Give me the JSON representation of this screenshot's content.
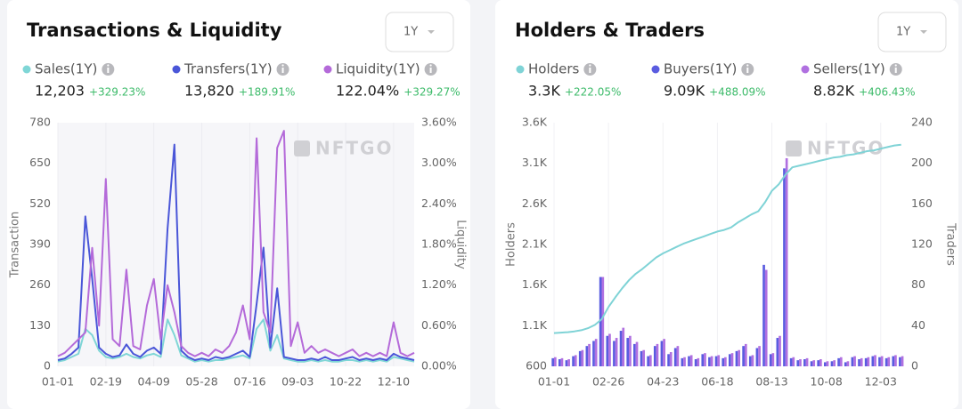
{
  "chart_data": [
    {
      "type": "line",
      "title": "Transactions & Liquidity",
      "period": "1Y",
      "watermark": "NFTGO",
      "ylabel": "Transaction",
      "y2label": "Liquidity",
      "x": [
        0,
        7,
        14,
        21,
        28,
        35,
        42,
        49,
        56,
        63,
        70,
        77,
        84,
        91,
        98,
        105,
        112,
        119,
        126,
        133,
        140,
        147,
        154,
        161,
        168,
        175,
        182,
        189,
        196,
        203,
        210,
        217,
        224,
        231,
        238,
        245,
        252,
        259,
        266,
        273,
        280,
        287,
        294,
        301,
        308,
        315,
        322,
        329,
        336,
        343,
        350,
        357,
        364
      ],
      "xlim": [
        0,
        364
      ],
      "xticks": [
        {
          "value": 0,
          "label": "01-01"
        },
        {
          "value": 49,
          "label": "02-19"
        },
        {
          "value": 98,
          "label": "04-09"
        },
        {
          "value": 147,
          "label": "05-28"
        },
        {
          "value": 196,
          "label": "07-16"
        },
        {
          "value": 245,
          "label": "09-03"
        },
        {
          "value": 294,
          "label": "10-22"
        },
        {
          "value": 343,
          "label": "12-10"
        }
      ],
      "ylim": [
        0,
        780
      ],
      "yticks": [
        0,
        130,
        260,
        390,
        520,
        650,
        780
      ],
      "y2lim": [
        0,
        3.6
      ],
      "y2ticks": [
        {
          "value": 0,
          "label": "0.00%"
        },
        {
          "value": 0.6,
          "label": "0.60%"
        },
        {
          "value": 1.2,
          "label": "1.20%"
        },
        {
          "value": 1.8,
          "label": "1.80%"
        },
        {
          "value": 2.4,
          "label": "2.40%"
        },
        {
          "value": 3.0,
          "label": "3.00%"
        },
        {
          "value": 3.6,
          "label": "3.60%"
        }
      ],
      "grid": true,
      "series": [
        {
          "name": "Sales(1Y)",
          "stat": "12,203",
          "change": "+329.23%",
          "color": "#7fd6d6",
          "values": [
            15,
            20,
            30,
            40,
            120,
            100,
            50,
            30,
            25,
            30,
            40,
            30,
            25,
            35,
            40,
            30,
            150,
            100,
            35,
            25,
            15,
            20,
            15,
            20,
            20,
            25,
            30,
            35,
            25,
            120,
            150,
            50,
            100,
            25,
            20,
            15,
            15,
            20,
            15,
            20,
            15,
            15,
            20,
            20,
            15,
            20,
            15,
            20,
            15,
            30,
            25,
            20,
            15
          ]
        },
        {
          "name": "Transfers(1Y)",
          "stat": "13,820",
          "change": "+189.91%",
          "color": "#4a56d8",
          "values": [
            20,
            25,
            40,
            60,
            480,
            280,
            60,
            40,
            30,
            35,
            70,
            40,
            30,
            50,
            60,
            40,
            440,
            710,
            50,
            30,
            20,
            25,
            20,
            30,
            25,
            30,
            40,
            50,
            30,
            200,
            380,
            60,
            250,
            30,
            25,
            20,
            20,
            25,
            20,
            30,
            20,
            20,
            25,
            30,
            20,
            25,
            20,
            25,
            20,
            40,
            30,
            25,
            20
          ]
        },
        {
          "name": "Liquidity(1Y)",
          "stat": "122.04%",
          "change": "+329.27%",
          "color": "#b46ad9",
          "axis": "y2",
          "values": [
            0.15,
            0.2,
            0.3,
            0.4,
            0.5,
            1.75,
            0.6,
            2.77,
            0.4,
            0.3,
            1.43,
            0.3,
            0.25,
            0.9,
            1.29,
            0.4,
            1.2,
            0.8,
            0.3,
            0.2,
            0.15,
            0.2,
            0.15,
            0.25,
            0.2,
            0.3,
            0.5,
            0.9,
            0.4,
            3.37,
            0.8,
            0.5,
            3.23,
            3.48,
            0.3,
            0.65,
            0.2,
            0.3,
            0.2,
            0.25,
            0.2,
            0.15,
            0.2,
            0.25,
            0.15,
            0.2,
            0.15,
            0.2,
            0.15,
            0.65,
            0.2,
            0.15,
            0.2
          ]
        }
      ]
    },
    {
      "type": "bar",
      "title": "Holders & Traders",
      "period": "1Y",
      "watermark": "NFTGO",
      "ylabel": "Holders",
      "y2label": "Traders",
      "x": [
        0,
        7,
        14,
        21,
        28,
        35,
        42,
        49,
        56,
        63,
        70,
        77,
        84,
        91,
        98,
        105,
        112,
        119,
        126,
        133,
        140,
        147,
        154,
        161,
        168,
        175,
        182,
        189,
        196,
        203,
        210,
        217,
        224,
        231,
        238,
        245,
        252,
        259,
        266,
        273,
        280,
        287,
        294,
        301,
        308,
        315,
        322,
        329,
        336,
        343,
        350,
        357
      ],
      "xlim": [
        0,
        360
      ],
      "xticks": [
        {
          "value": 0,
          "label": "01-01"
        },
        {
          "value": 56,
          "label": "02-26"
        },
        {
          "value": 112,
          "label": "04-23"
        },
        {
          "value": 168,
          "label": "06-18"
        },
        {
          "value": 224,
          "label": "08-13"
        },
        {
          "value": 280,
          "label": "10-08"
        },
        {
          "value": 336,
          "label": "12-03"
        }
      ],
      "ylim": [
        600,
        3600
      ],
      "yticks": [
        600,
        {
          "value": 1100,
          "label": "1.1K"
        },
        {
          "value": 1600,
          "label": "1.6K"
        },
        {
          "value": 2100,
          "label": "2.1K"
        },
        {
          "value": 2600,
          "label": "2.6K"
        },
        {
          "value": 3100,
          "label": "3.1K"
        },
        {
          "value": 3600,
          "label": "3.6K"
        }
      ],
      "y2lim": [
        0,
        240
      ],
      "y2ticks": [
        0,
        40,
        80,
        120,
        160,
        200,
        240
      ],
      "grid": true,
      "series": [
        {
          "name": "Holders",
          "stat": "3.3K",
          "change": "+222.05%",
          "color": "#7fd3d6",
          "type": "line",
          "values": [
            1010,
            1015,
            1020,
            1030,
            1045,
            1070,
            1110,
            1180,
            1330,
            1450,
            1560,
            1660,
            1740,
            1800,
            1870,
            1940,
            1990,
            2030,
            2070,
            2110,
            2140,
            2170,
            2200,
            2230,
            2260,
            2280,
            2310,
            2370,
            2420,
            2470,
            2510,
            2620,
            2760,
            2840,
            2960,
            3050,
            3070,
            3090,
            3110,
            3130,
            3150,
            3170,
            3180,
            3200,
            3210,
            3230,
            3250,
            3260,
            3280,
            3300,
            3320,
            3330
          ]
        },
        {
          "name": "Buyers(1Y)",
          "stat": "9.09K",
          "change": "+488.09%",
          "color": "#5a5ce0",
          "axis": "y2",
          "values": [
            8,
            7,
            6,
            10,
            15,
            20,
            25,
            88,
            30,
            25,
            35,
            28,
            22,
            15,
            10,
            20,
            25,
            12,
            18,
            8,
            10,
            7,
            12,
            9,
            10,
            8,
            12,
            15,
            20,
            10,
            18,
            100,
            12,
            28,
            195,
            8,
            6,
            7,
            5,
            6,
            4,
            5,
            8,
            4,
            9,
            7,
            8,
            10,
            9,
            8,
            10,
            9
          ]
        },
        {
          "name": "Sellers(1Y)",
          "stat": "8.82K",
          "change": "+406.43%",
          "color": "#b070e0",
          "axis": "y2",
          "values": [
            9,
            8,
            7,
            11,
            16,
            22,
            27,
            88,
            32,
            28,
            38,
            30,
            24,
            16,
            11,
            22,
            27,
            14,
            20,
            9,
            11,
            8,
            13,
            10,
            11,
            9,
            13,
            16,
            22,
            11,
            20,
            95,
            13,
            30,
            205,
            9,
            7,
            8,
            6,
            7,
            5,
            6,
            9,
            5,
            10,
            8,
            9,
            11,
            10,
            9,
            11,
            10
          ]
        }
      ]
    }
  ]
}
